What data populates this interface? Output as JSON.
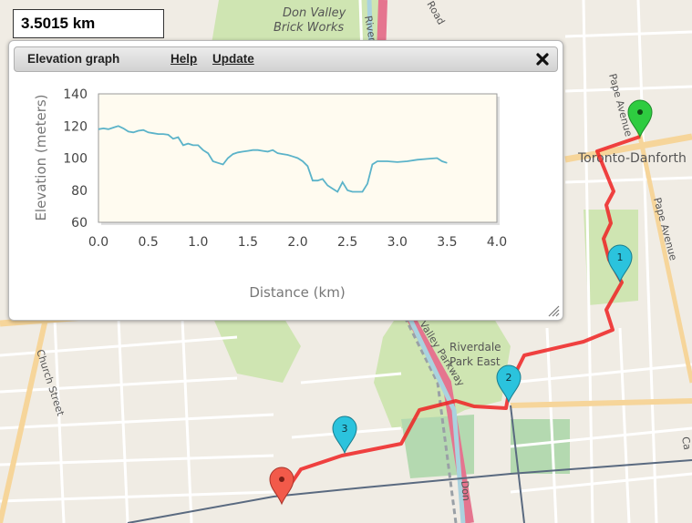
{
  "distance_label": "3.5015 km",
  "panel": {
    "title": "Elevation graph",
    "help_label": "Help",
    "update_label": "Update",
    "close_icon": "close-icon"
  },
  "map_labels": {
    "don_valley_1": "Don Valley",
    "don_valley_2": "Brick Works",
    "toronto_danforth": "Toronto-Danforth",
    "pape_avenue_1": "Pape Avenue",
    "pape_avenue_2": "Pape Avenue",
    "church_street": "Church Street",
    "valley_parkway": "Valley Parkway",
    "riverdale_1": "Riverdale",
    "riverdale_2": "Park East",
    "river": "River",
    "road": "Road",
    "don": "Don",
    "ca": "Ca"
  },
  "markers": [
    {
      "id": "start",
      "label": "",
      "color": "#f25a4a"
    },
    {
      "id": "wp3",
      "label": "3",
      "color": "#2bc3dd"
    },
    {
      "id": "wp2",
      "label": "2",
      "color": "#2bc3dd"
    },
    {
      "id": "wp1",
      "label": "1",
      "color": "#2bc3dd"
    },
    {
      "id": "end",
      "label": "",
      "color": "#2ecc40"
    }
  ],
  "route_color": "#ee2222",
  "chart_data": {
    "type": "line",
    "title": "",
    "xlabel": "Distance (km)",
    "ylabel": "Elevation (meters)",
    "xlim": [
      0,
      4
    ],
    "ylim": [
      60,
      140
    ],
    "xticks": [
      "0.0",
      "0.5",
      "1.0",
      "1.5",
      "2.0",
      "2.5",
      "3.0",
      "3.5",
      "4.0"
    ],
    "yticks": [
      "60",
      "80",
      "100",
      "120",
      "140"
    ],
    "grid": false,
    "line_color": "#5bb3c9",
    "series": [
      {
        "x": [
          0,
          0.05,
          0.1,
          0.15,
          0.2,
          0.25,
          0.3,
          0.35,
          0.4,
          0.45,
          0.5,
          0.55,
          0.6,
          0.65,
          0.7,
          0.75,
          0.8,
          0.85,
          0.9,
          0.95,
          1.0,
          1.05,
          1.1,
          1.15,
          1.2,
          1.25,
          1.3,
          1.35,
          1.4,
          1.45,
          1.5,
          1.55,
          1.6,
          1.65,
          1.7,
          1.75,
          1.8,
          1.85,
          1.9,
          1.95,
          2.0,
          2.05,
          2.1,
          2.15,
          2.2,
          2.25,
          2.3,
          2.35,
          2.4,
          2.45,
          2.5,
          2.55,
          2.6,
          2.65,
          2.7,
          2.75,
          2.8,
          2.9,
          3.0,
          3.1,
          3.2,
          3.3,
          3.4,
          3.45,
          3.5
        ],
        "y": [
          118,
          118.5,
          118,
          119,
          120,
          118.5,
          116.5,
          116,
          117,
          117.5,
          116,
          115.5,
          115,
          115,
          114.5,
          112,
          113,
          108,
          109,
          108,
          108,
          105,
          103,
          98,
          97,
          96,
          100,
          102.5,
          103.5,
          104,
          104.5,
          105,
          105,
          104.5,
          104,
          105,
          103,
          102.5,
          102,
          101,
          100,
          98,
          95,
          86,
          86,
          87,
          83,
          81,
          79,
          85,
          80,
          79,
          79,
          79,
          84,
          96,
          98,
          98,
          97.5,
          98,
          99,
          99.5,
          100,
          98,
          97
        ]
      }
    ]
  }
}
